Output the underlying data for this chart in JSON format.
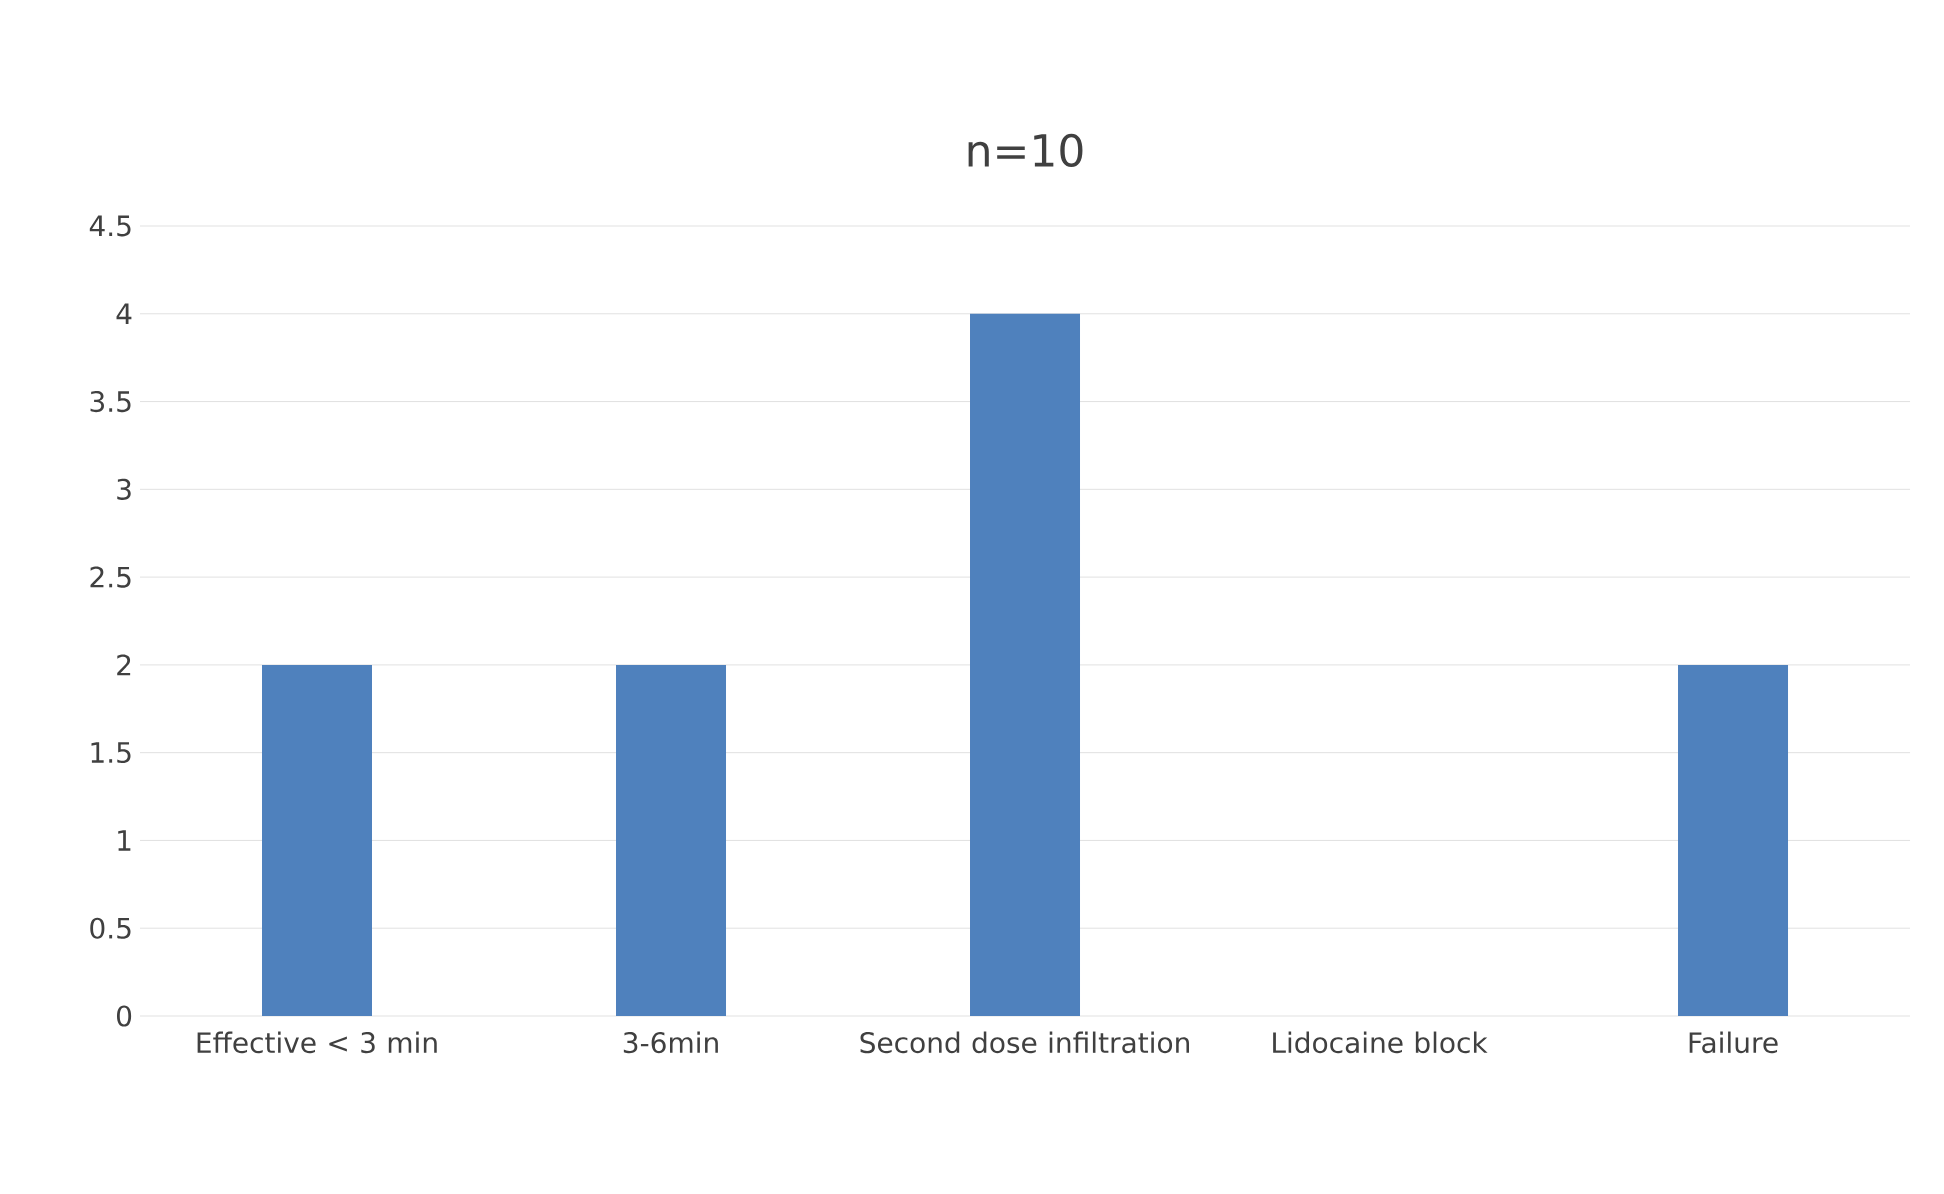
{
  "chart_data": {
    "type": "bar",
    "title": "n=10",
    "categories": [
      "Effective < 3 min",
      "3-6min",
      "Second dose infiltration",
      "Lidocaine block",
      "Failure"
    ],
    "values": [
      2,
      2,
      4,
      0,
      2
    ],
    "color": "#4f81bd",
    "ylim": [
      0,
      4.5
    ],
    "yticks": [
      0,
      0.5,
      1,
      1.5,
      2,
      2.5,
      3,
      3.5,
      4,
      4.5
    ],
    "grid": "y"
  }
}
